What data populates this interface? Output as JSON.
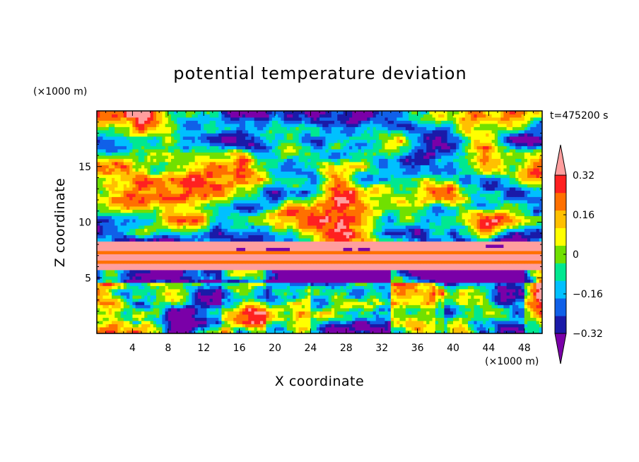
{
  "chart_data": {
    "type": "heatmap",
    "title": "potential temperature deviation",
    "time_label": "t=475200 s",
    "xlabel": "X coordinate",
    "ylabel": "Z coordinate",
    "x_unit": "(×1000 m)",
    "y_unit": "(×1000 m)",
    "xlim": [
      0,
      50
    ],
    "ylim": [
      0,
      20
    ],
    "x_ticks": [
      "4",
      "8",
      "12",
      "16",
      "20",
      "24",
      "28",
      "32",
      "36",
      "40",
      "44",
      "48"
    ],
    "y_ticks": [
      "5",
      "10",
      "15"
    ],
    "colorbar": {
      "tick_labels": [
        "0.32",
        "0.16",
        "0",
        "−0.16",
        "−0.32"
      ],
      "tick_values": [
        0.32,
        0.16,
        0,
        -0.16,
        -0.32
      ],
      "levels": [
        -0.4,
        -0.32,
        -0.24,
        -0.16,
        -0.08,
        0,
        0.08,
        0.16,
        0.24,
        0.32,
        0.4
      ],
      "colors": [
        "#7a00a8",
        "#1a1aa8",
        "#1060e8",
        "#00c0ff",
        "#00e890",
        "#70e000",
        "#ffff00",
        "#ffc000",
        "#ff7000",
        "#ff2020",
        "#ff9e9e"
      ],
      "extend": "both"
    },
    "regions": [
      {
        "description_level": "upper",
        "z_range": [
          8,
          20
        ],
        "dominant_values": [
          0.4,
          -0.4
        ]
      },
      {
        "description_level": "middle",
        "z_range": [
          5.5,
          8
        ],
        "dominant_values": [
          0.4,
          0.32
        ]
      },
      {
        "description_level": "lower",
        "z_range": [
          0,
          5.5
        ],
        "dominant_values": [
          -0.32,
          0.16,
          0.32
        ]
      }
    ]
  }
}
